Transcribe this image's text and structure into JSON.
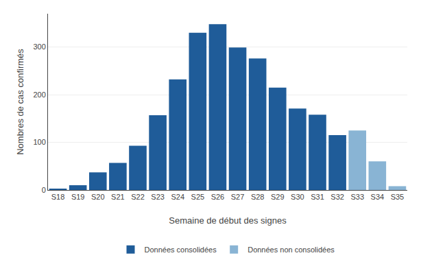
{
  "chart_data": {
    "type": "bar",
    "xlabel": "Semaine de début des signes",
    "ylabel": "Nombres de cas confirmés",
    "categories": [
      "S18",
      "S19",
      "S20",
      "S21",
      "S22",
      "S23",
      "S24",
      "S25",
      "S26",
      "S27",
      "S28",
      "S29",
      "S30",
      "S31",
      "S32",
      "S33",
      "S34",
      "S35"
    ],
    "series": [
      {
        "name": "Données consolidées",
        "color": "#1f5c99",
        "values": [
          2,
          10,
          37,
          57,
          93,
          157,
          232,
          330,
          348,
          299,
          276,
          215,
          171,
          158,
          115,
          null,
          null,
          null
        ]
      },
      {
        "name": "Données non consolidées",
        "color": "#89b4d4",
        "values": [
          null,
          null,
          null,
          null,
          null,
          null,
          null,
          null,
          null,
          null,
          null,
          null,
          null,
          null,
          null,
          125,
          60,
          8
        ]
      }
    ],
    "ylim": [
      0,
      370
    ],
    "yticks": [
      0,
      100,
      200,
      300
    ],
    "grid": true,
    "legend": "bottom"
  }
}
